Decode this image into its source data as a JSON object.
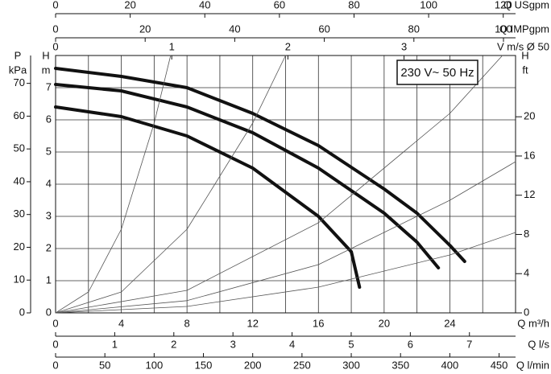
{
  "chart_data": {
    "type": "line",
    "annotation": "230 V~ 50 Hz",
    "xlabel": "Q m³/h",
    "ylabel": [
      "H",
      "m"
    ],
    "xlim": [
      0,
      28
    ],
    "xticks": [
      0,
      4,
      8,
      12,
      16,
      20,
      24
    ],
    "ylim": [
      0,
      8
    ],
    "yticks": [
      0,
      1,
      2,
      3,
      4,
      5,
      6,
      7
    ],
    "xgrid": [
      2,
      6,
      10,
      14,
      18,
      22,
      26
    ],
    "grid": true,
    "axes": [
      {
        "label": "Q USgpm",
        "position": "top",
        "row": 0,
        "lim": [
          0,
          123.3
        ],
        "ticks": [
          0,
          20,
          40,
          60,
          80,
          100,
          120
        ]
      },
      {
        "label": "Q IMPgpm",
        "position": "top",
        "row": 1,
        "lim": [
          0,
          102.7
        ],
        "ticks": [
          0,
          20,
          40,
          60,
          80,
          100
        ]
      },
      {
        "label": "V m/s Ø 50",
        "position": "top",
        "row": 2,
        "lim": [
          0,
          3.96
        ],
        "ticks": [
          0,
          1,
          2,
          3
        ]
      },
      {
        "label": "Q l/s",
        "position": "bottom",
        "row": 1,
        "lim": [
          0,
          7.78
        ],
        "ticks": [
          0,
          1,
          2,
          3,
          4,
          5,
          6,
          7
        ]
      },
      {
        "label": "Q l/min",
        "position": "bottom",
        "row": 2,
        "lim": [
          0,
          466.7
        ],
        "ticks": [
          0,
          50,
          100,
          150,
          200,
          250,
          300,
          350,
          400,
          450
        ]
      },
      {
        "label": [
          "P",
          "kPa"
        ],
        "position": "left",
        "lim": [
          0,
          78.5
        ],
        "ticks": [
          0,
          10,
          20,
          30,
          40,
          50,
          60,
          70
        ]
      },
      {
        "label": [
          "H",
          "ft"
        ],
        "position": "right",
        "lim": [
          0,
          26.25
        ],
        "ticks": [
          0,
          4,
          8,
          12,
          16,
          20
        ]
      }
    ],
    "series": [
      {
        "color": "#111111",
        "width": 4,
        "x": [
          0,
          4,
          8,
          12,
          16,
          20,
          22,
          24,
          24.9
        ],
        "values": [
          7.6,
          7.35,
          7.0,
          6.2,
          5.2,
          3.85,
          3.1,
          2.1,
          1.6
        ]
      },
      {
        "color": "#111111",
        "width": 4,
        "x": [
          0,
          4,
          8,
          12,
          16,
          20,
          22,
          23.3
        ],
        "values": [
          7.1,
          6.9,
          6.4,
          5.6,
          4.5,
          3.1,
          2.2,
          1.4
        ]
      },
      {
        "color": "#111111",
        "width": 4,
        "x": [
          0,
          4,
          8,
          12,
          16,
          18,
          18.5
        ],
        "values": [
          6.4,
          6.1,
          5.5,
          4.5,
          3.0,
          1.9,
          0.8
        ]
      },
      {
        "color": "#555555",
        "width": 0.8,
        "x": [
          0,
          2,
          4,
          6,
          7
        ],
        "values": [
          0,
          0.65,
          2.6,
          5.9,
          8
        ]
      },
      {
        "color": "#555555",
        "width": 0.8,
        "x": [
          0,
          4,
          8,
          12,
          14
        ],
        "values": [
          0,
          0.65,
          2.6,
          5.9,
          8
        ]
      },
      {
        "color": "#555555",
        "width": 0.8,
        "x": [
          0,
          8,
          16,
          24,
          27.2
        ],
        "values": [
          0,
          0.7,
          2.8,
          6.2,
          8
        ]
      },
      {
        "color": "#555555",
        "width": 0.8,
        "x": [
          0,
          8,
          16,
          24,
          28
        ],
        "values": [
          0,
          0.38,
          1.5,
          3.5,
          4.7
        ]
      },
      {
        "color": "#555555",
        "width": 0.8,
        "x": [
          0,
          8,
          16,
          24,
          28
        ],
        "values": [
          0,
          0.2,
          0.8,
          1.8,
          2.5
        ]
      }
    ]
  }
}
